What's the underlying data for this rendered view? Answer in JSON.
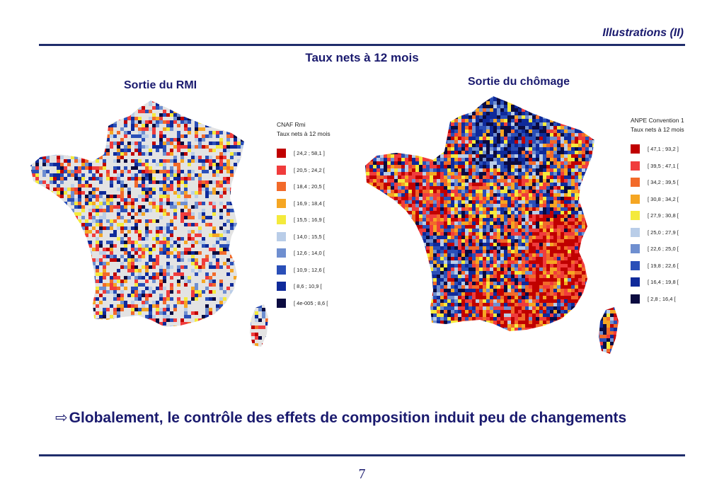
{
  "header": {
    "section_title": "Illustrations (II)"
  },
  "main_title": "Taux nets à 12 mois",
  "maps": [
    {
      "subtitle": "Sortie du RMI",
      "legend_title_1": "CNAF Rmi",
      "legend_title_2": "Taux  nets  à  12  mois",
      "classes": [
        {
          "label": "[  24,2  ;  58,1  ]",
          "color": "#c00000"
        },
        {
          "label": "[  20,5  ;  24,2  [",
          "color": "#f03c3c"
        },
        {
          "label": "[  18,4  ;  20,5  [",
          "color": "#f26a2a"
        },
        {
          "label": "[  16,9  ;  18,4  [",
          "color": "#f5a623"
        },
        {
          "label": "[  15,5  ;  16,9  [",
          "color": "#f4ea3c"
        },
        {
          "label": "[  14,0  ;  15,5  [",
          "color": "#b9cde8"
        },
        {
          "label": "[  12,6  ;  14,0  [",
          "color": "#6f8fd0"
        },
        {
          "label": "[  10,9  ;  12,6  [",
          "color": "#2a4fb8"
        },
        {
          "label": "[  8,6  ;  10,9  [",
          "color": "#0f2a9a"
        },
        {
          "label": "[  4e-005  ;  8,6  [",
          "color": "#0b0b40"
        }
      ]
    },
    {
      "subtitle": "Sortie du chômage",
      "legend_title_1": "ANPE  Convention  1",
      "legend_title_2": "Taux  nets  à  12  mois",
      "classes": [
        {
          "label": "[  47,1  ;  93,2  ]",
          "color": "#c00000"
        },
        {
          "label": "[  39,5  ;  47,1  [",
          "color": "#f03c3c"
        },
        {
          "label": "[  34,2  ;  39,5  [",
          "color": "#f26a2a"
        },
        {
          "label": "[  30,8  ;  34,2  [",
          "color": "#f5a623"
        },
        {
          "label": "[  27,9  ;  30,8  [",
          "color": "#f4ea3c"
        },
        {
          "label": "[  25,0  ;  27,9  [",
          "color": "#b9cde8"
        },
        {
          "label": "[  22,6  ;  25,0  [",
          "color": "#6f8fd0"
        },
        {
          "label": "[  19,8  ;  22,6  [",
          "color": "#2a4fb8"
        },
        {
          "label": "[  16,4  ;  19,8  [",
          "color": "#0f2a9a"
        },
        {
          "label": "[  2,8  ;  16,4  [",
          "color": "#0b0b40"
        }
      ]
    }
  ],
  "bullet_text": "Globalement, le contrôle des effets de composition induit peu de changements",
  "page_number": "7"
}
